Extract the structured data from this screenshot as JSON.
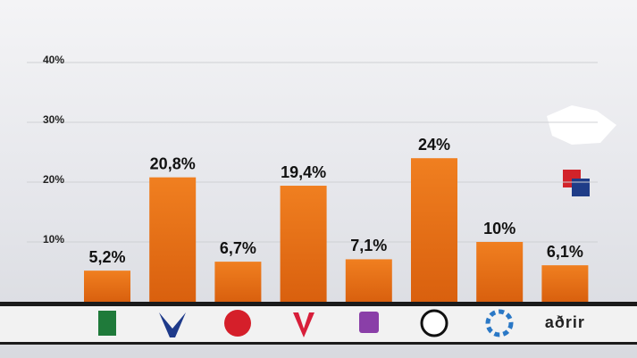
{
  "chart_data": {
    "type": "bar",
    "categories": [
      null,
      null,
      null,
      null,
      null,
      null,
      null,
      "aðrir"
    ],
    "values": [
      5.2,
      20.8,
      6.7,
      19.4,
      7.1,
      24,
      10,
      6.1
    ],
    "value_labels": [
      "5,2%",
      "20,8%",
      "6,7%",
      "19,4%",
      "7,1%",
      "24%",
      "10%",
      "6,1%"
    ],
    "color": "#e8751a",
    "ylim": [
      0,
      40
    ],
    "yticks": [
      {
        "value": 10,
        "label": "10%"
      },
      {
        "value": 20,
        "label": "20%"
      },
      {
        "value": 30,
        "label": "30%"
      },
      {
        "value": 40,
        "label": "40%"
      }
    ],
    "grid": true
  }
}
